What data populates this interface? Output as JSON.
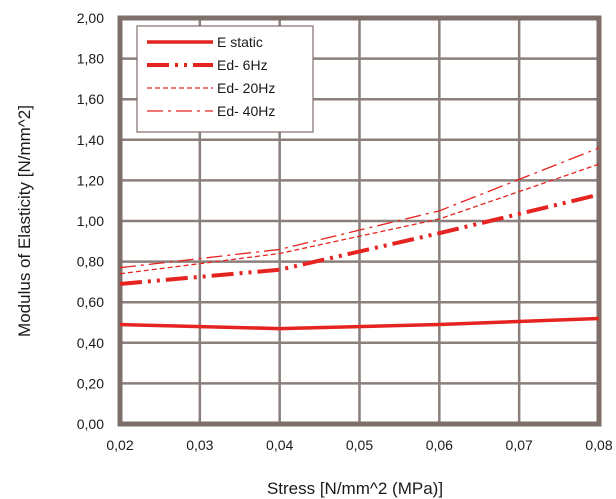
{
  "chart_data": {
    "type": "line",
    "xlabel": "Stress [N/mm^2 (MPa)]",
    "ylabel": "Modulus of Elasticity [N/mm^2]",
    "xlim": [
      0.02,
      0.08
    ],
    "ylim": [
      0,
      2.0
    ],
    "x_ticks": [
      "0,02",
      "0,03",
      "0,04",
      "0,05",
      "0,06",
      "0,07",
      "0,08"
    ],
    "y_ticks": [
      "0,00",
      "0,20",
      "0,40",
      "0,60",
      "0,80",
      "1,00",
      "1,20",
      "1,40",
      "1,60",
      "1,80",
      "2,00"
    ],
    "x_tick_values": [
      0.02,
      0.03,
      0.04,
      0.05,
      0.06,
      0.07,
      0.08
    ],
    "y_tick_values": [
      0,
      0.2,
      0.4,
      0.6,
      0.8,
      1.0,
      1.2,
      1.4,
      1.6,
      1.8,
      2.0
    ],
    "grid": true,
    "legend_position": "top-left",
    "series": [
      {
        "name": "E static",
        "color": "#e52421",
        "style": "solid",
        "width": 3.5,
        "x": [
          0.02,
          0.04,
          0.06,
          0.08
        ],
        "y": [
          0.49,
          0.47,
          0.49,
          0.52
        ]
      },
      {
        "name": "Ed- 6Hz",
        "color": "#e52421",
        "style": "dash-dot-dot",
        "width": 4,
        "x": [
          0.02,
          0.04,
          0.06,
          0.08
        ],
        "y": [
          0.69,
          0.76,
          0.94,
          1.13
        ]
      },
      {
        "name": "Ed- 20Hz",
        "color": "#e52421",
        "style": "short-dash",
        "width": 1.3,
        "x": [
          0.02,
          0.04,
          0.06,
          0.08
        ],
        "y": [
          0.74,
          0.84,
          1.01,
          1.28
        ]
      },
      {
        "name": "Ed- 40Hz",
        "color": "#e52421",
        "style": "dash-dot",
        "width": 1.3,
        "x": [
          0.02,
          0.04,
          0.06,
          0.08
        ],
        "y": [
          0.77,
          0.86,
          1.05,
          1.36
        ]
      }
    ]
  }
}
